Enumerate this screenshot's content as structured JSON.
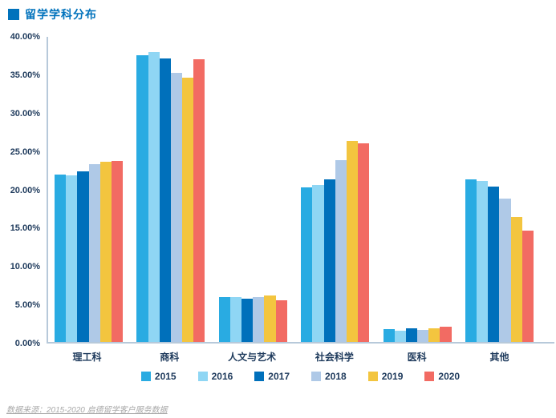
{
  "page": {
    "title": "留学学科分布",
    "source_note": "数据来源：2015-2020 启德留学客户服务数据"
  },
  "colors": {
    "brand_blue": "#0072bc",
    "axis_line": "#b7c9da",
    "tick_label_navy": "#1e3a5c",
    "source_gray": "#a9a9a9"
  },
  "chart_data": {
    "type": "bar",
    "title": "留学学科分布",
    "categories": [
      "理工科",
      "商科",
      "人文与艺术",
      "社会科学",
      "医科",
      "其他"
    ],
    "series": [
      {
        "name": "2015",
        "color": "#29abe2",
        "values": [
          21.9,
          37.6,
          5.9,
          20.3,
          1.7,
          21.3
        ]
      },
      {
        "name": "2016",
        "color": "#8fd6f4",
        "values": [
          21.8,
          38.0,
          5.9,
          20.6,
          1.5,
          21.1
        ]
      },
      {
        "name": "2017",
        "color": "#0070bb",
        "values": [
          22.4,
          37.2,
          5.7,
          21.3,
          1.8,
          20.4
        ]
      },
      {
        "name": "2018",
        "color": "#afc9e7",
        "values": [
          23.3,
          35.3,
          5.9,
          23.8,
          1.6,
          18.8
        ]
      },
      {
        "name": "2019",
        "color": "#f3c53f",
        "values": [
          23.6,
          34.6,
          6.1,
          26.4,
          1.8,
          16.4
        ]
      },
      {
        "name": "2020",
        "color": "#f26b63",
        "values": [
          23.7,
          37.1,
          5.5,
          26.0,
          2.0,
          14.6
        ]
      }
    ],
    "ylim": [
      0,
      40
    ],
    "ytick_values": [
      0,
      5,
      10,
      15,
      20,
      25,
      30,
      35,
      40
    ],
    "ytick_labels": [
      "0.00%",
      "5.00%",
      "10.00%",
      "15.00%",
      "20.00%",
      "25.00%",
      "30.00%",
      "35.00%",
      "40.00%"
    ],
    "grid": false,
    "legend_position": "bottom",
    "xlabel": "",
    "ylabel": ""
  }
}
